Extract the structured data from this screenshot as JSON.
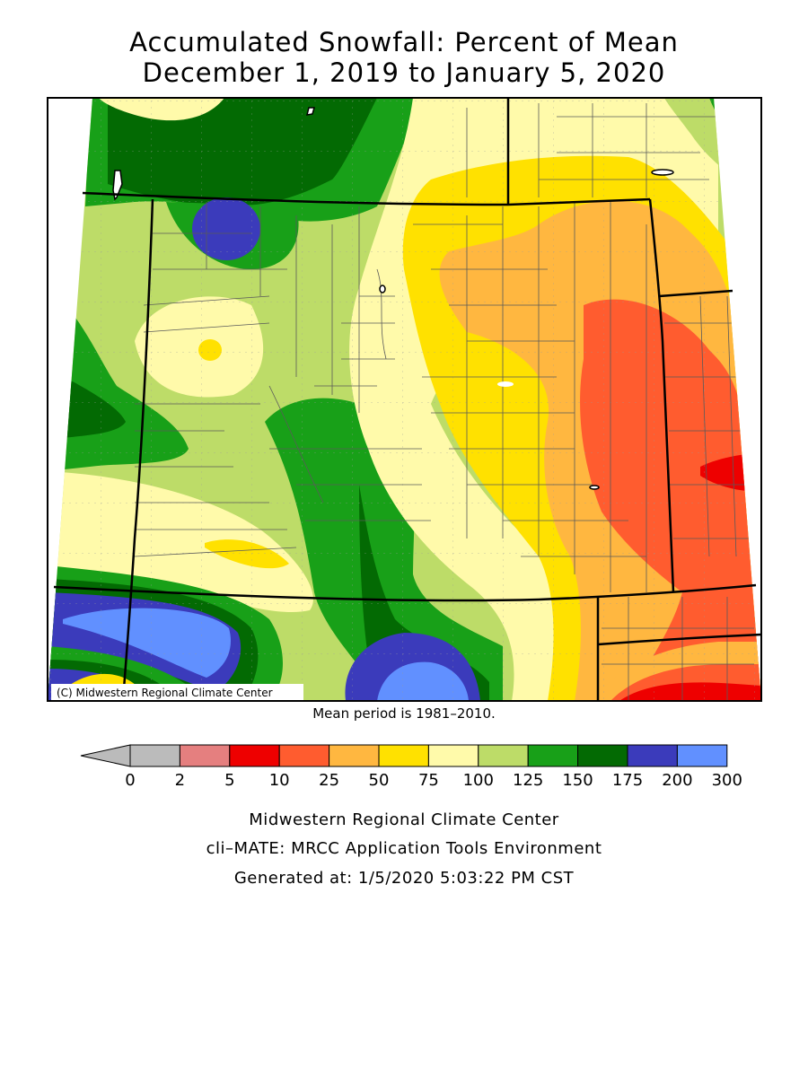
{
  "title_line1": "Accumulated Snowfall: Percent of Mean",
  "title_line2": "December 1, 2019 to January 5, 2020",
  "copyright": "(C) Midwestern Regional Climate Center",
  "mean_period": "Mean period is 1981–2010.",
  "legend": {
    "ticks": [
      "0",
      "2",
      "5",
      "10",
      "25",
      "50",
      "75",
      "100",
      "125",
      "150",
      "175",
      "200",
      "300"
    ],
    "colors": [
      "#bbbbbb",
      "#e57f7f",
      "#ee0000",
      "#ff5c2f",
      "#ffb740",
      "#ffe100",
      "#fffaaa",
      "#bddc68",
      "#18a018",
      "#036a03",
      "#3b3bbb",
      "#6190ff"
    ],
    "below_range_color": "#bbbbbb"
  },
  "footer": {
    "line1": "Midwestern Regional Climate Center",
    "line2": "cli–MATE: MRCC Application Tools Environment",
    "line3": "Generated at: 1/5/2020 5:03:22 PM CST"
  }
}
